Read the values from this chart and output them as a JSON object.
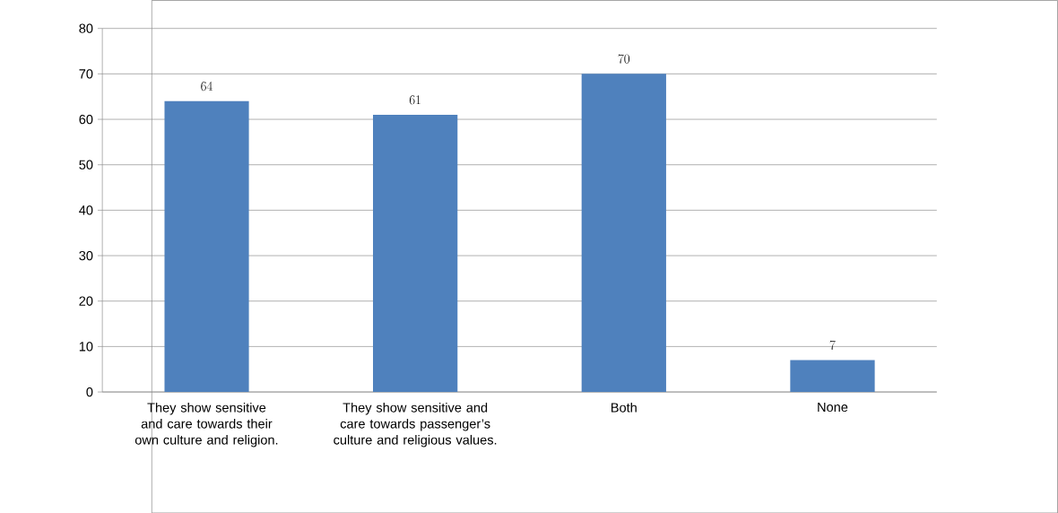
{
  "chart_data": {
    "type": "bar",
    "categories": [
      "They show sensitive and care towards their own culture and religion.",
      "They show sensitive and care towards passenger’s culture and religious values.",
      "Both",
      "None"
    ],
    "values": [
      64,
      61,
      70,
      7
    ],
    "color": "#4f81bd",
    "ylim": [
      0,
      80
    ],
    "yticks": [
      0,
      10,
      20,
      30,
      40,
      50,
      60,
      70,
      80
    ],
    "grid": "y",
    "data_labels": true
  }
}
